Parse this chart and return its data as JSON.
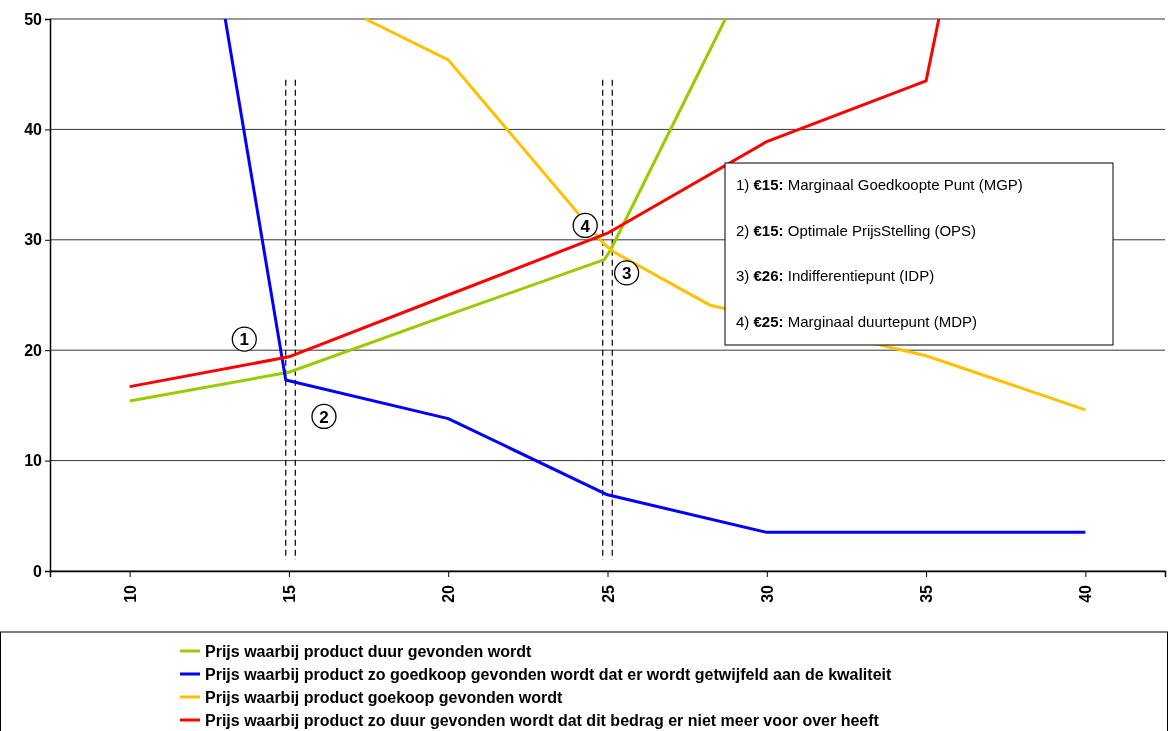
{
  "chart_data": {
    "type": "line",
    "xlim": [
      7.5,
      42.5
    ],
    "ylim": [
      0,
      50
    ],
    "xticks": [
      10,
      15,
      20,
      25,
      30,
      35,
      40
    ],
    "yticks": [
      0,
      10,
      20,
      30,
      40,
      50
    ],
    "grid": "y",
    "legend": "bottom",
    "marker": "none",
    "line_style": "solid",
    "series": [
      {
        "name": "Prijs waarbij product duur gevonden wordt",
        "color": "#99cc00",
        "x": [
          10,
          15,
          20,
          24.9,
          25.1,
          28.7
        ],
        "values": [
          15.4,
          18,
          23.2,
          28.2,
          29.1,
          50
        ]
      },
      {
        "name": "Prijs waarbij product zo goedkoop gevonden wordt dat er wordt getwijfeld aan de kwaliteit",
        "color": "#0000ff",
        "x": [
          13,
          14.9,
          20,
          25,
          30,
          35,
          40
        ],
        "values": [
          50,
          17.3,
          13.8,
          6.9,
          3.5,
          3.5,
          3.5
        ]
      },
      {
        "name": "Prijs waarbij product goekoop gevonden wordt",
        "color": "#ffc000",
        "x": [
          17.4,
          20,
          24.9,
          25.2,
          28.2,
          30,
          35,
          40
        ],
        "values": [
          50,
          46.3,
          29.6,
          28.9,
          24.1,
          null,
          19.5,
          14.6
        ]
      },
      {
        "name": "Prijs waarbij product zo duur gevonden wordt dat dit bedrag er niet meer voor over heeft",
        "color": "#ff0000",
        "x": [
          10,
          15,
          20,
          25,
          30,
          35,
          35.4
        ],
        "values": [
          16.7,
          19.4,
          25,
          30.6,
          38.9,
          44.4,
          50
        ]
      }
    ],
    "ref_lines": [
      {
        "axis": "x",
        "value": 14.9,
        "line_style": "dashed",
        "color": "#000000"
      },
      {
        "axis": "x",
        "value": 15.2,
        "line_style": "dashed",
        "color": "#000000"
      },
      {
        "axis": "x",
        "value": 24.85,
        "line_style": "dashed",
        "color": "#000000"
      },
      {
        "axis": "x",
        "value": 25.15,
        "line_style": "dashed",
        "color": "#000000"
      }
    ],
    "annotations": [
      {
        "text": "1",
        "x": 13.6,
        "y": 21
      },
      {
        "text": "2",
        "x": 16.1,
        "y": 14
      },
      {
        "text": "3",
        "x": 25.6,
        "y": 27
      },
      {
        "text": "4",
        "x": 24.3,
        "y": 31.3
      },
      "1) €15: Marginaal Goedkoopte Punt (MGP)",
      "2) €15: Optimale PrijsStelling (OPS)",
      "3) €26: Indifferentiepunt (IDP)",
      "4) €25: Marginaal duurtepunt (MDP)"
    ]
  }
}
